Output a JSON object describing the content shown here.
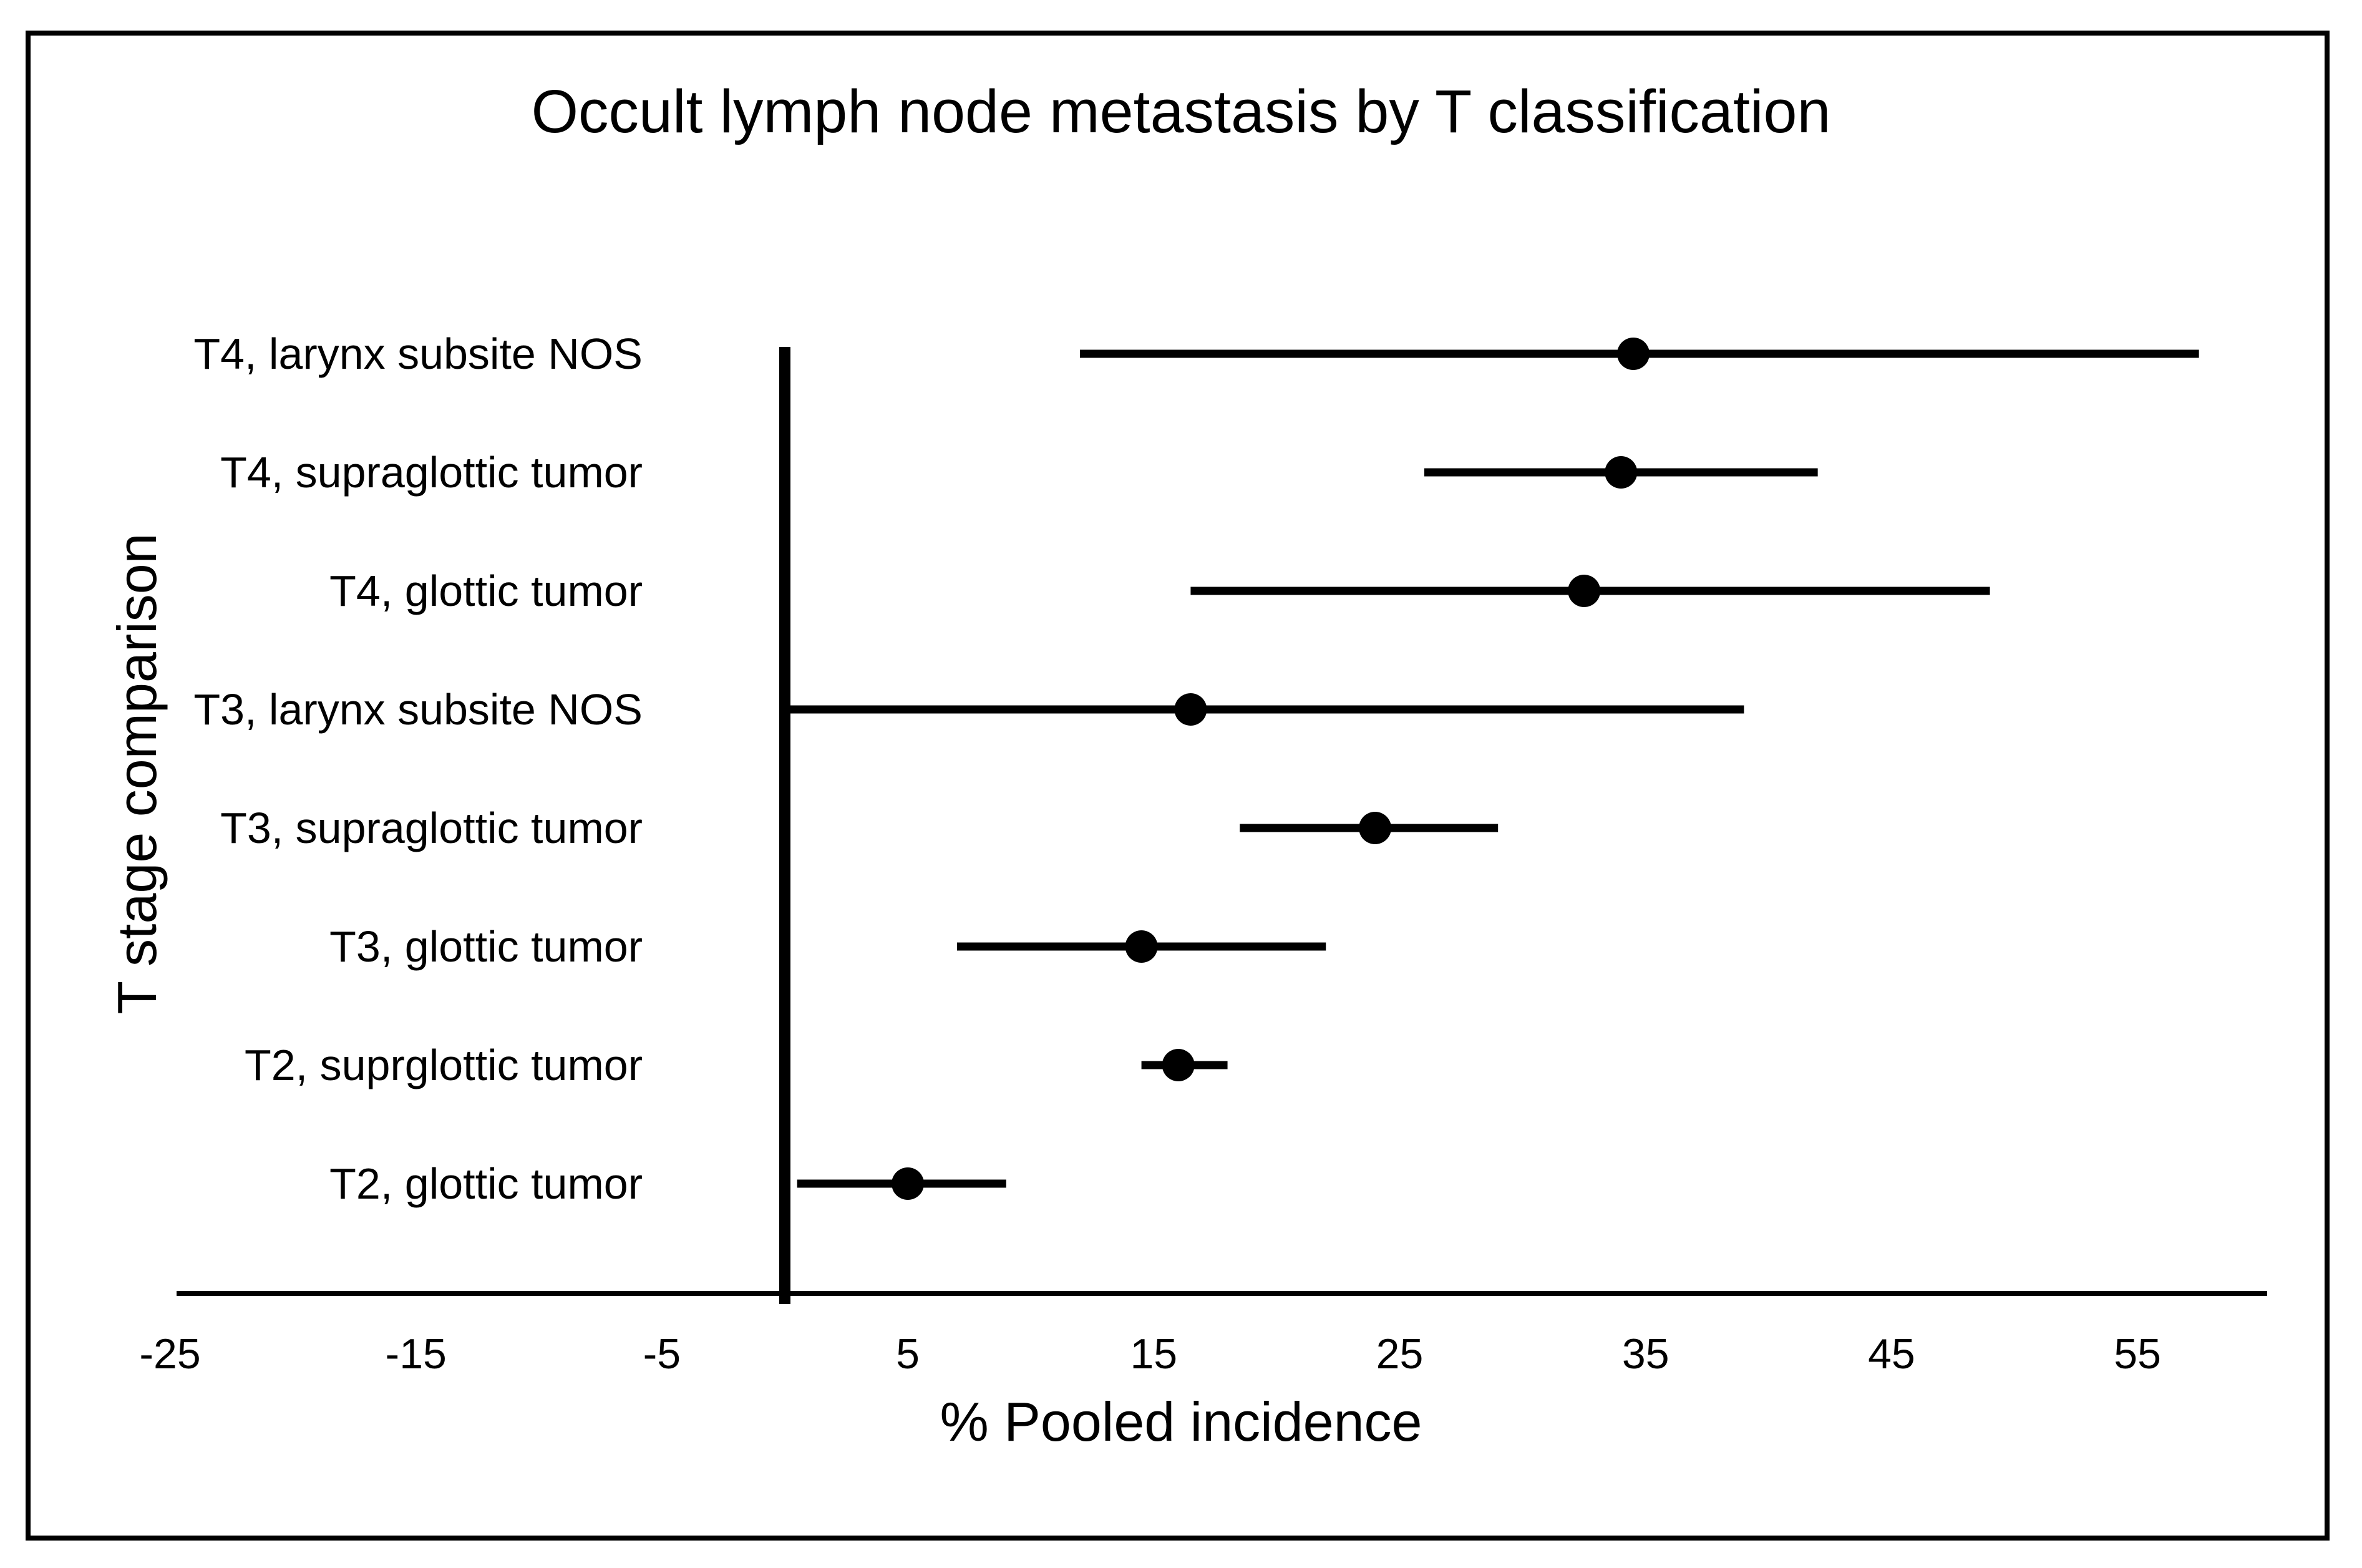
{
  "figure": {
    "background_color": "#ffffff",
    "border_color": "#000000",
    "ink_color": "#000000"
  },
  "chart_data": {
    "type": "scatter",
    "variant": "horizontal-forest-plot-with-error-bars",
    "title": "Occult lymph node metastasis by T classification",
    "xlabel": "% Pooled incidence",
    "ylabel": "T stage comparison",
    "xlim": [
      -25,
      60
    ],
    "x_ticks": [
      -25,
      -15,
      -5,
      5,
      15,
      25,
      35,
      45,
      55
    ],
    "grid": false,
    "legend": false,
    "reference_line_x": 0,
    "marker_color": "#000000",
    "error_bar_color": "#000000",
    "rows": [
      {
        "label": "T4, larynx subsite NOS",
        "value": 34.5,
        "lower": 12,
        "upper": 57.5
      },
      {
        "label": "T4, supraglottic tumor",
        "value": 34,
        "lower": 26,
        "upper": 42
      },
      {
        "label": "T4, glottic tumor",
        "value": 32.5,
        "lower": 16.5,
        "upper": 49
      },
      {
        "label": "T3, larynx subsite NOS",
        "value": 16.5,
        "lower": 0,
        "upper": 39
      },
      {
        "label": "T3, supraglottic tumor",
        "value": 24,
        "lower": 18.5,
        "upper": 29
      },
      {
        "label": "T3, glottic tumor",
        "value": 14.5,
        "lower": 7,
        "upper": 22
      },
      {
        "label": "T2, suprglottic tumor",
        "value": 16,
        "lower": 14.5,
        "upper": 18
      },
      {
        "label": "T2, glottic tumor",
        "value": 5,
        "lower": 0.5,
        "upper": 9
      }
    ]
  }
}
